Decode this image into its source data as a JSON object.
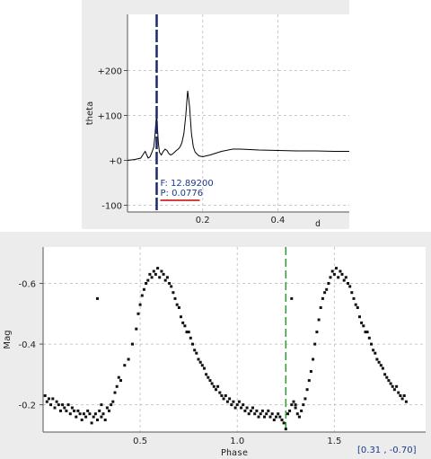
{
  "colors": {
    "panel_bg": "#ececec",
    "plot_bg": "#ffffff",
    "grid": "#c8c8c8",
    "curve": "#000000",
    "period_marker": "#1a2a6c",
    "phase_marker": "#2aa02a",
    "underline": "#cc0000",
    "annotation_text": "#1a3a8a"
  },
  "cursor_readout": "[0.31 , -0.70]",
  "chart_data": [
    {
      "type": "line",
      "name": "periodogram",
      "ylabel": "theta",
      "xlabel": "d",
      "xlim": [
        0,
        0.59
      ],
      "ylim": [
        -115,
        325
      ],
      "xticks": [
        {
          "v": 0.2,
          "label": "0.2"
        },
        {
          "v": 0.4,
          "label": "0.4"
        }
      ],
      "yticks": [
        {
          "v": -100,
          "label": "-100"
        },
        {
          "v": 0,
          "label": "+0"
        },
        {
          "v": 100,
          "label": "+100"
        },
        {
          "v": 200,
          "label": "+200"
        }
      ],
      "grid": true,
      "marker_x": 0.0776,
      "annotation": {
        "frequency": "F: 12.89200",
        "period": "P: 0.0776"
      },
      "x": [
        0.0,
        0.02,
        0.035,
        0.043,
        0.047,
        0.051,
        0.055,
        0.06,
        0.065,
        0.07,
        0.073,
        0.0755,
        0.0776,
        0.0795,
        0.082,
        0.085,
        0.09,
        0.095,
        0.1,
        0.105,
        0.11,
        0.115,
        0.12,
        0.125,
        0.13,
        0.135,
        0.14,
        0.145,
        0.15,
        0.155,
        0.16,
        0.165,
        0.17,
        0.175,
        0.18,
        0.19,
        0.2,
        0.22,
        0.25,
        0.28,
        0.3,
        0.35,
        0.4,
        0.45,
        0.5,
        0.55,
        0.59
      ],
      "y": [
        0,
        2,
        5,
        15,
        20,
        12,
        5,
        8,
        18,
        30,
        55,
        85,
        100,
        75,
        40,
        18,
        12,
        20,
        25,
        22,
        15,
        12,
        14,
        18,
        22,
        25,
        30,
        40,
        60,
        100,
        155,
        120,
        60,
        30,
        18,
        10,
        8,
        12,
        20,
        25,
        25,
        23,
        22,
        21,
        21,
        20,
        20
      ]
    },
    {
      "type": "scatter",
      "name": "phase_diagram",
      "ylabel": "Mag",
      "xlabel": "Phase",
      "xlim": [
        0,
        1.97
      ],
      "ylim": [
        -0.11,
        -0.72
      ],
      "xticks": [
        {
          "v": 0.5,
          "label": "0.5"
        },
        {
          "v": 1.0,
          "label": "1.0"
        },
        {
          "v": 1.5,
          "label": "1.5"
        }
      ],
      "yticks": [
        {
          "v": -0.2,
          "label": "-0.2"
        },
        {
          "v": -0.4,
          "label": "-0.4"
        },
        {
          "v": -0.6,
          "label": "-0.6"
        }
      ],
      "grid": true,
      "marker_x": 1.25,
      "points": [
        [
          0.01,
          -0.23
        ],
        [
          0.02,
          -0.21
        ],
        [
          0.03,
          -0.22
        ],
        [
          0.04,
          -0.2
        ],
        [
          0.05,
          -0.22
        ],
        [
          0.06,
          -0.19
        ],
        [
          0.07,
          -0.21
        ],
        [
          0.08,
          -0.2
        ],
        [
          0.09,
          -0.18
        ],
        [
          0.1,
          -0.2
        ],
        [
          0.11,
          -0.19
        ],
        [
          0.12,
          -0.18
        ],
        [
          0.13,
          -0.2
        ],
        [
          0.14,
          -0.17
        ],
        [
          0.15,
          -0.19
        ],
        [
          0.16,
          -0.18
        ],
        [
          0.17,
          -0.16
        ],
        [
          0.18,
          -0.18
        ],
        [
          0.19,
          -0.17
        ],
        [
          0.2,
          -0.15
        ],
        [
          0.21,
          -0.17
        ],
        [
          0.22,
          -0.16
        ],
        [
          0.23,
          -0.18
        ],
        [
          0.24,
          -0.17
        ],
        [
          0.25,
          -0.14
        ],
        [
          0.26,
          -0.16
        ],
        [
          0.27,
          -0.17
        ],
        [
          0.28,
          -0.15
        ],
        [
          0.29,
          -0.18
        ],
        [
          0.3,
          -0.16
        ],
        [
          0.31,
          -0.17
        ],
        [
          0.32,
          -0.15
        ],
        [
          0.33,
          -0.19
        ],
        [
          0.34,
          -0.18
        ],
        [
          0.35,
          -0.2
        ],
        [
          0.36,
          -0.21
        ],
        [
          0.37,
          -0.24
        ],
        [
          0.38,
          -0.26
        ],
        [
          0.39,
          -0.29
        ],
        [
          0.4,
          -0.28
        ],
        [
          0.42,
          -0.33
        ],
        [
          0.44,
          -0.35
        ],
        [
          0.46,
          -0.4
        ],
        [
          0.48,
          -0.45
        ],
        [
          0.49,
          -0.5
        ],
        [
          0.5,
          -0.53
        ],
        [
          0.51,
          -0.56
        ],
        [
          0.52,
          -0.58
        ],
        [
          0.53,
          -0.6
        ],
        [
          0.54,
          -0.61
        ],
        [
          0.55,
          -0.63
        ],
        [
          0.56,
          -0.62
        ],
        [
          0.57,
          -0.64
        ],
        [
          0.58,
          -0.63
        ],
        [
          0.59,
          -0.65
        ],
        [
          0.6,
          -0.62
        ],
        [
          0.61,
          -0.64
        ],
        [
          0.62,
          -0.63
        ],
        [
          0.63,
          -0.61
        ],
        [
          0.64,
          -0.62
        ],
        [
          0.65,
          -0.6
        ],
        [
          0.66,
          -0.59
        ],
        [
          0.67,
          -0.57
        ],
        [
          0.68,
          -0.55
        ],
        [
          0.69,
          -0.53
        ],
        [
          0.7,
          -0.52
        ],
        [
          0.71,
          -0.49
        ],
        [
          0.72,
          -0.47
        ],
        [
          0.73,
          -0.46
        ],
        [
          0.74,
          -0.44
        ],
        [
          0.75,
          -0.44
        ],
        [
          0.76,
          -0.42
        ],
        [
          0.77,
          -0.4
        ],
        [
          0.78,
          -0.38
        ],
        [
          0.79,
          -0.37
        ],
        [
          0.8,
          -0.35
        ],
        [
          0.81,
          -0.34
        ],
        [
          0.82,
          -0.33
        ],
        [
          0.83,
          -0.32
        ],
        [
          0.84,
          -0.3
        ],
        [
          0.85,
          -0.29
        ],
        [
          0.86,
          -0.28
        ],
        [
          0.87,
          -0.27
        ],
        [
          0.88,
          -0.26
        ],
        [
          0.89,
          -0.25
        ],
        [
          0.9,
          -0.26
        ],
        [
          0.91,
          -0.24
        ],
        [
          0.92,
          -0.23
        ],
        [
          0.93,
          -0.22
        ],
        [
          0.94,
          -0.23
        ],
        [
          0.95,
          -0.21
        ],
        [
          0.96,
          -0.22
        ],
        [
          0.97,
          -0.2
        ],
        [
          0.98,
          -0.21
        ],
        [
          0.99,
          -0.19
        ],
        [
          1.0,
          -0.2
        ],
        [
          1.01,
          -0.21
        ],
        [
          1.02,
          -0.19
        ],
        [
          1.03,
          -0.2
        ],
        [
          1.04,
          -0.18
        ],
        [
          1.05,
          -0.19
        ],
        [
          1.06,
          -0.17
        ],
        [
          1.07,
          -0.18
        ],
        [
          1.08,
          -0.19
        ],
        [
          1.09,
          -0.17
        ],
        [
          1.1,
          -0.18
        ],
        [
          1.11,
          -0.16
        ],
        [
          1.12,
          -0.17
        ],
        [
          1.13,
          -0.18
        ],
        [
          1.14,
          -0.16
        ],
        [
          1.15,
          -0.17
        ],
        [
          1.16,
          -0.18
        ],
        [
          1.17,
          -0.16
        ],
        [
          1.18,
          -0.17
        ],
        [
          1.19,
          -0.15
        ],
        [
          1.2,
          -0.16
        ],
        [
          1.21,
          -0.17
        ],
        [
          1.22,
          -0.16
        ],
        [
          1.23,
          -0.15
        ],
        [
          1.24,
          -0.14
        ],
        [
          1.25,
          -0.12
        ],
        [
          1.26,
          -0.17
        ],
        [
          1.27,
          -0.18
        ],
        [
          1.28,
          -0.2
        ],
        [
          1.29,
          -0.21
        ],
        [
          1.3,
          -0.19
        ],
        [
          1.31,
          -0.17
        ],
        [
          1.32,
          -0.16
        ],
        [
          1.33,
          -0.18
        ],
        [
          1.34,
          -0.2
        ],
        [
          1.35,
          -0.22
        ],
        [
          1.36,
          -0.25
        ],
        [
          1.37,
          -0.28
        ],
        [
          1.38,
          -0.31
        ],
        [
          1.39,
          -0.35
        ],
        [
          1.4,
          -0.4
        ],
        [
          1.41,
          -0.44
        ],
        [
          1.42,
          -0.48
        ],
        [
          1.43,
          -0.52
        ],
        [
          1.44,
          -0.55
        ],
        [
          1.45,
          -0.57
        ],
        [
          1.46,
          -0.58
        ],
        [
          1.47,
          -0.6
        ],
        [
          1.48,
          -0.62
        ],
        [
          1.49,
          -0.64
        ],
        [
          1.5,
          -0.63
        ],
        [
          1.51,
          -0.65
        ],
        [
          1.52,
          -0.62
        ],
        [
          1.53,
          -0.64
        ],
        [
          1.54,
          -0.63
        ],
        [
          1.55,
          -0.61
        ],
        [
          1.56,
          -0.62
        ],
        [
          1.57,
          -0.6
        ],
        [
          1.58,
          -0.59
        ],
        [
          1.59,
          -0.57
        ],
        [
          1.6,
          -0.55
        ],
        [
          1.61,
          -0.53
        ],
        [
          1.62,
          -0.52
        ],
        [
          1.63,
          -0.49
        ],
        [
          1.64,
          -0.47
        ],
        [
          1.65,
          -0.46
        ],
        [
          1.66,
          -0.44
        ],
        [
          1.67,
          -0.44
        ],
        [
          1.68,
          -0.42
        ],
        [
          1.69,
          -0.4
        ],
        [
          1.7,
          -0.38
        ],
        [
          1.71,
          -0.37
        ],
        [
          1.72,
          -0.35
        ],
        [
          1.73,
          -0.34
        ],
        [
          1.74,
          -0.33
        ],
        [
          1.75,
          -0.32
        ],
        [
          1.76,
          -0.3
        ],
        [
          1.77,
          -0.29
        ],
        [
          1.78,
          -0.28
        ],
        [
          1.79,
          -0.27
        ],
        [
          1.8,
          -0.26
        ],
        [
          1.81,
          -0.25
        ],
        [
          1.82,
          -0.26
        ],
        [
          1.83,
          -0.24
        ],
        [
          1.84,
          -0.23
        ],
        [
          1.85,
          -0.22
        ],
        [
          1.86,
          -0.23
        ],
        [
          1.87,
          -0.21
        ],
        [
          0.28,
          -0.55
        ],
        [
          1.28,
          -0.55
        ],
        [
          0.3,
          -0.2
        ],
        [
          1.3,
          -0.2
        ]
      ]
    }
  ]
}
